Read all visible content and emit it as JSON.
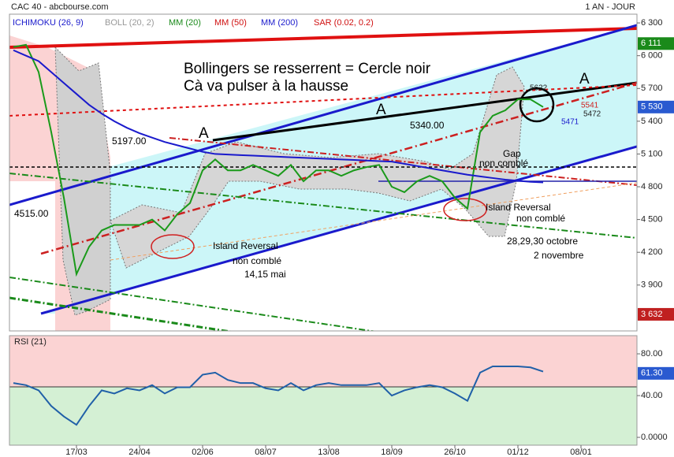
{
  "header": {
    "left": "CAC 40 - abcbourse.com",
    "right": "1 AN - JOUR"
  },
  "chart_data": [
    {
      "type": "line",
      "indicators": [
        {
          "name": "ICHIMOKU (26, 9)",
          "color": "#1a1acc"
        },
        {
          "name": "BOLL (20, 2)",
          "color": "#999999"
        },
        {
          "name": "MM (20)",
          "color": "#1a8a1a"
        },
        {
          "name": "MM (50)",
          "color": "#d01010"
        },
        {
          "name": "SAR (0.02, 0.2)",
          "color": "#d01010"
        }
      ],
      "categories": [
        null,
        null,
        null,
        null,
        null,
        "17/03",
        null,
        null,
        null,
        null,
        "24/04",
        null,
        null,
        null,
        null,
        "02/06",
        null,
        null,
        null,
        null,
        "08/07",
        null,
        null,
        null,
        null,
        "13/08",
        null,
        null,
        null,
        null,
        "18/09",
        null,
        null,
        null,
        null,
        "26/10",
        null,
        null,
        null,
        null,
        "01/12",
        null,
        null,
        null,
        null,
        "08/01",
        null,
        null,
        null,
        null
      ],
      "series": [
        {
          "name": "CAC 40",
          "color": "#1a9a1a",
          "values": [
            6080,
            6100,
            5850,
            5300,
            4700,
            4000,
            4250,
            4400,
            4450,
            4450,
            4450,
            4500,
            4400,
            4550,
            4650,
            4950,
            5050,
            4950,
            4950,
            5000,
            4950,
            4900,
            5000,
            4850,
            4950,
            4950,
            4900,
            4950,
            4980,
            5000,
            4800,
            4750,
            4850,
            4900,
            4850,
            4700,
            4600,
            5300,
            5450,
            5500,
            5600,
            5600,
            5530,
            null,
            null,
            null,
            null,
            null,
            null,
            null
          ]
        },
        {
          "name": "MM (200)",
          "color": "#1a1acc",
          "values": [
            6050,
            6000,
            5950,
            5850,
            5750,
            5650,
            5550,
            5470,
            5400,
            5340,
            5290,
            5250,
            5210,
            5180,
            5150,
            5120,
            5100,
            5095,
            5090,
            5085,
            5080,
            5075,
            5070,
            5065,
            5060,
            5055,
            5050,
            5045,
            5040,
            5035,
            5030,
            5010,
            4990,
            4970,
            4950,
            4930,
            4910,
            4895,
            4880,
            4865,
            4855,
            4845,
            4840,
            null,
            null,
            null,
            null,
            null,
            null,
            null
          ]
        }
      ],
      "ylim": [
        3480,
        6380
      ],
      "yticks": [
        {
          "value": 6300,
          "label": "6 300"
        },
        {
          "value": 6000,
          "label": "6 000"
        },
        {
          "value": 5700,
          "label": "5 700"
        },
        {
          "value": 5400,
          "label": "5 400"
        },
        {
          "value": 5100,
          "label": "5 100"
        },
        {
          "value": 4800,
          "label": "4 800"
        },
        {
          "value": 4500,
          "label": "4 500"
        },
        {
          "value": 4200,
          "label": "4 200"
        },
        {
          "value": 3900,
          "label": "3 900"
        }
      ],
      "badges": [
        {
          "value": 6111,
          "label": "6 111",
          "color": "#1a8a1a"
        },
        {
          "value": 5530,
          "label": "5 530",
          "color": "#2a5ad0"
        },
        {
          "value": 3632,
          "label": "3 632",
          "color": "#c02020"
        }
      ],
      "annotations": [
        "Bollingers se resserrent = Cercle noir",
        "Cà va pulser à la hausse",
        "A",
        "A",
        "A",
        "5197.00",
        "5340.00",
        "4515.00",
        "Gap",
        "non comblé",
        "Island Reversal",
        "non comblé",
        "Island Reversal",
        "non comblé",
        "14,15 mai",
        "28,29,30 octobre",
        "2 novembre",
        "5622",
        "5541",
        "5472",
        "5471"
      ]
    },
    {
      "type": "line",
      "title": "RSI (21)",
      "series": [
        {
          "color": "#2060a8",
          "values": [
            52,
            50,
            45,
            30,
            20,
            12,
            30,
            45,
            42,
            47,
            45,
            50,
            42,
            48,
            48,
            60,
            62,
            55,
            52,
            52,
            47,
            45,
            52,
            45,
            50,
            52,
            50,
            50,
            50,
            52,
            40,
            45,
            48,
            50,
            48,
            42,
            35,
            62,
            68,
            68,
            68,
            67,
            63,
            null,
            null,
            null,
            null,
            null,
            null,
            null
          ]
        }
      ],
      "ylim": [
        -7.5,
        97.4
      ],
      "yticks": [
        {
          "value": 80,
          "label": "80.00"
        },
        {
          "value": 40,
          "label": "40.00"
        },
        {
          "value": 0,
          "label": "0.0000"
        }
      ],
      "badges": [
        {
          "value": 61.3,
          "label": "61.30",
          "color": "#2a5ad0"
        }
      ]
    }
  ]
}
